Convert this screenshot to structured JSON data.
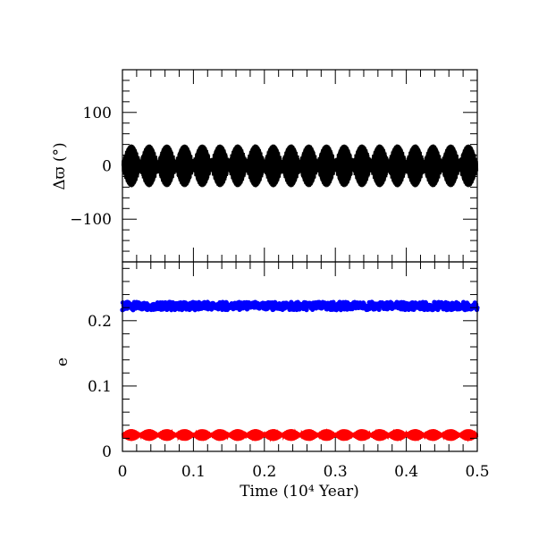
{
  "chart_data": [
    {
      "type": "scatter",
      "title": "",
      "xlabel": "",
      "ylabel": "Δϖ (°)",
      "xlim": [
        0,
        0.5
      ],
      "ylim": [
        -180,
        180
      ],
      "x_ticks": [
        0,
        0.1,
        0.2,
        0.3,
        0.4,
        0.5
      ],
      "y_ticks": [
        -100,
        0,
        100
      ],
      "y_tick_labels": [
        "−100",
        "0",
        "100"
      ],
      "series": [
        {
          "color": "#000000",
          "oscillation": {
            "center": 0,
            "x_start": 0,
            "x_end": 0.5,
            "period": 0.025,
            "amplitude_max": 40,
            "amplitude_min": 10
          }
        }
      ]
    },
    {
      "type": "scatter",
      "title": "",
      "xlabel": "Time (10⁴ Year)",
      "ylabel": "e",
      "xlim": [
        0,
        0.5
      ],
      "ylim": [
        0,
        0.29
      ],
      "x_ticks": [
        0,
        0.1,
        0.2,
        0.3,
        0.4,
        0.5
      ],
      "x_tick_labels": [
        "0",
        "0.1",
        "0.2",
        "0.3",
        "0.4",
        "0.5"
      ],
      "y_ticks": [
        0,
        0.1,
        0.2
      ],
      "y_tick_labels": [
        "0",
        "0.1",
        "0.2"
      ],
      "series": [
        {
          "color": "#0000ff",
          "band": {
            "center": 0.2225,
            "half_width": 0.006,
            "x_start": 0,
            "x_end": 0.5
          }
        },
        {
          "color": "#ff0000",
          "oscillation": {
            "center": 0.025,
            "x_start": 0,
            "x_end": 0.5,
            "period": 0.025,
            "amplitude_max": 0.009,
            "amplitude_min": 0.003
          }
        }
      ]
    }
  ]
}
